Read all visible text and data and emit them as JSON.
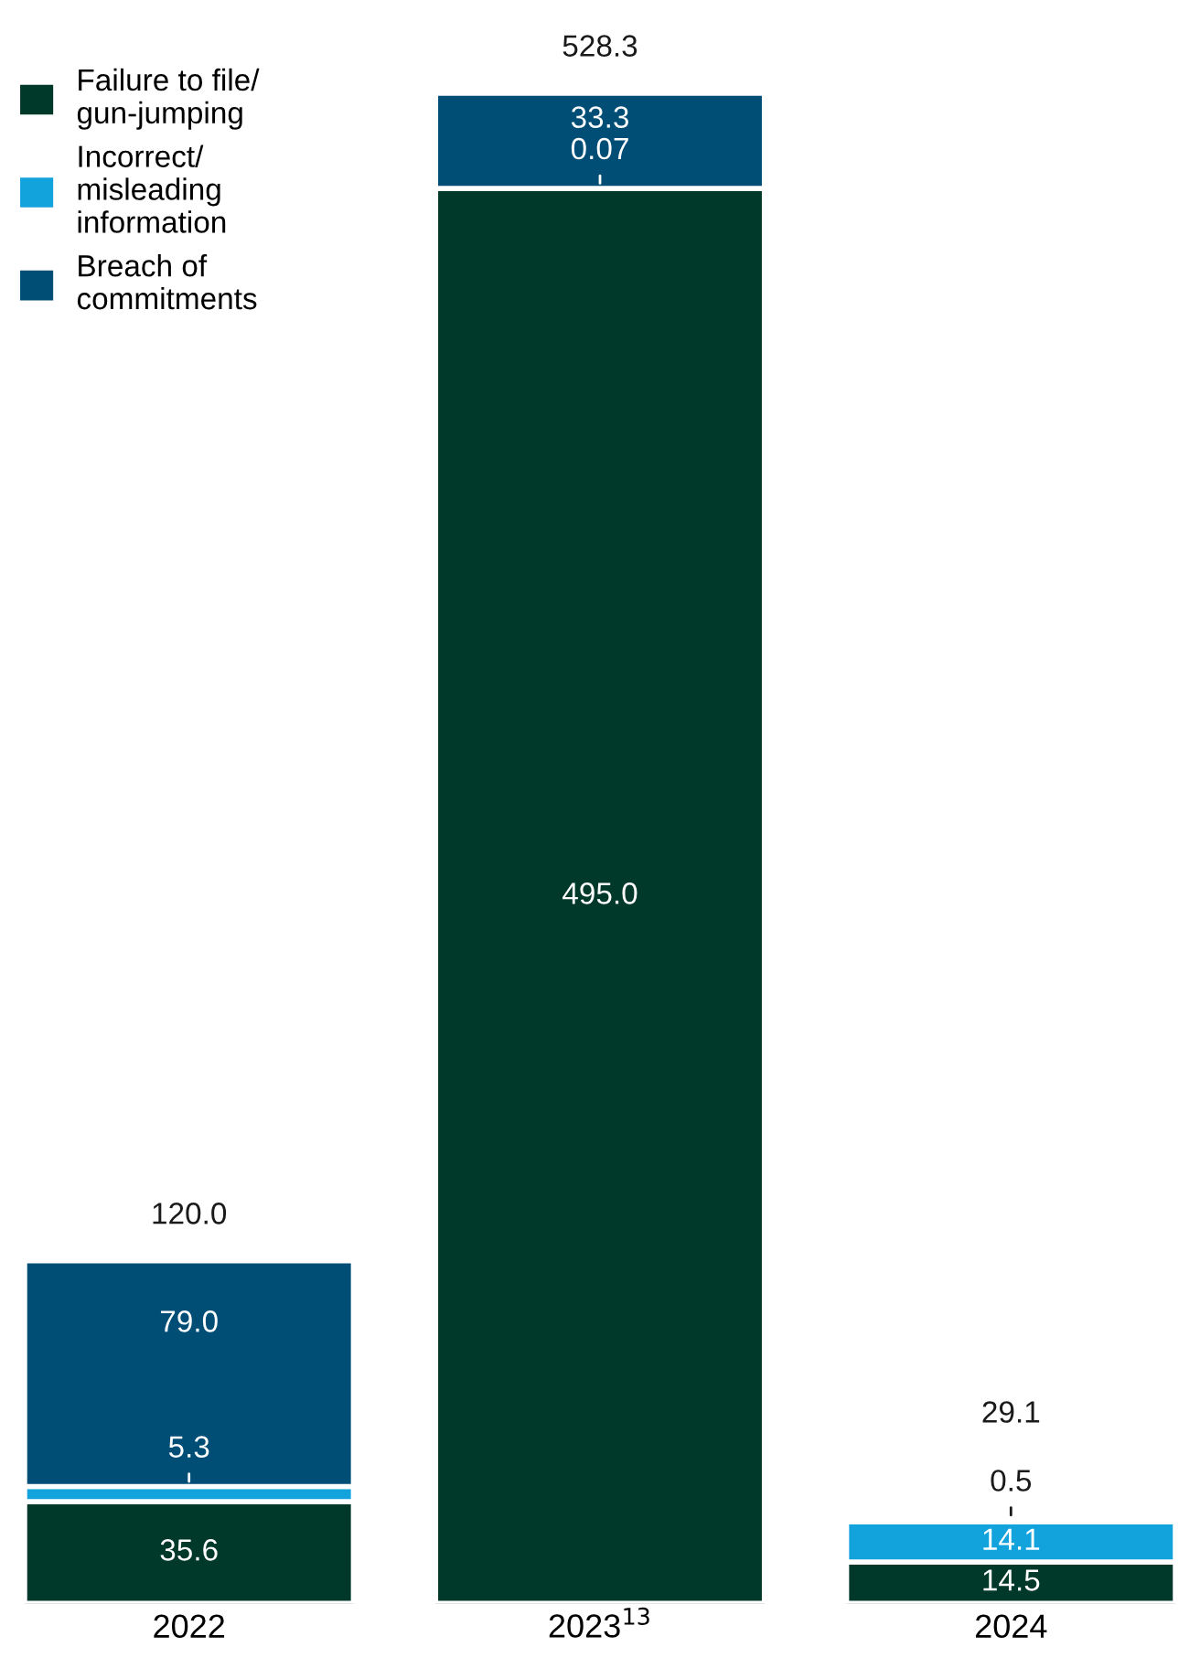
{
  "chart_data": {
    "type": "bar",
    "stacked": true,
    "categories": [
      "2022",
      "2023$^{13}$",
      "2024"
    ],
    "series": [
      {
        "name": "Failure to file/\ngun-jumping",
        "color": "#00382a",
        "values": [
          35.6,
          495.0,
          14.5
        ],
        "value_labels": [
          "35.6",
          "495.0",
          "14.5"
        ]
      },
      {
        "name": "Incorrect/\nmisleading\ninformation",
        "color": "#13a3dc",
        "values": [
          5.3,
          0.07,
          14.1
        ],
        "value_labels": [
          "5.3",
          "0.07",
          "14.1"
        ]
      },
      {
        "name": "Breach of\ncommitments",
        "color": "#004d75",
        "values": [
          79.0,
          33.3,
          0.5
        ],
        "value_labels": [
          "79.0",
          "33.3",
          "0.5"
        ]
      }
    ],
    "totals": [
      "120.0",
      "528.3",
      "29.1"
    ],
    "legend": "top left",
    "grid": false
  }
}
